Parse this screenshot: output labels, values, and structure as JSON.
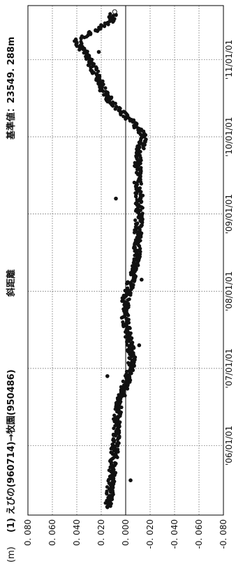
{
  "chart_data": {
    "type": "scatter",
    "orientation": "rotated-90-ccw",
    "unit_label": "(m)",
    "station_label": "(1) えびの(960714)→牧園(950486)",
    "measure_label": "斜距離",
    "reference_label": "基準値：23549. 288m",
    "baseline": 0.0,
    "ylim": [
      -0.08,
      0.08
    ],
    "y_ticks": [
      "0. 080",
      "0. 060",
      "0. 040",
      "0. 020",
      "0. 000",
      "-0. 020",
      "-0. 040",
      "-0. 060",
      "-0. 080"
    ],
    "y_tick_values": [
      0.08,
      0.06,
      0.04,
      0.02,
      0.0,
      -0.02,
      -0.04,
      -0.06,
      -0.08
    ],
    "x_ticks": [
      "'06/01/01",
      "'07/01/01",
      "'08/01/01",
      "'09/01/01",
      "'10/01/01",
      "'11/01/01"
    ],
    "x_tick_years": [
      2006,
      2007,
      2008,
      2009,
      2010,
      2011
    ],
    "xlim": [
      2005.1,
      2011.7
    ],
    "grid": true,
    "series": [
      {
        "x": [
          2005.2,
          2005.35,
          2005.5,
          2005.65,
          2005.8,
          2005.95,
          2006.1,
          2006.25,
          2006.4,
          2006.55,
          2006.7,
          2006.85,
          2007.0,
          2007.15,
          2007.3,
          2007.45,
          2007.6,
          2007.75,
          2007.9,
          2008.05,
          2008.2,
          2008.35,
          2008.5,
          2008.65,
          2008.8,
          2008.95,
          2009.1,
          2009.25,
          2009.4,
          2009.55,
          2009.7,
          2009.85,
          2010.0,
          2010.15,
          2010.3,
          2010.45,
          2010.6,
          2010.75,
          2010.9,
          2011.05,
          2011.25,
          2011.35,
          2011.5,
          2011.6
        ],
        "y": [
          0.015,
          0.013,
          0.012,
          0.011,
          0.01,
          0.009,
          0.008,
          0.008,
          0.007,
          0.005,
          0.002,
          -0.001,
          -0.004,
          -0.005,
          -0.004,
          -0.002,
          0.0,
          0.001,
          0.0,
          -0.003,
          -0.006,
          -0.008,
          -0.009,
          -0.01,
          -0.01,
          -0.011,
          -0.011,
          -0.011,
          -0.01,
          -0.01,
          -0.01,
          -0.012,
          -0.015,
          -0.008,
          0.002,
          0.012,
          0.018,
          0.022,
          0.027,
          0.032,
          0.04,
          0.028,
          0.012,
          0.01
        ],
        "outliers": {
          "x": [
            2005.55,
            2006.9,
            2007.3,
            2008.1,
            2008.15,
            2009.2,
            2010.6,
            2011.05,
            2011.1
          ],
          "y": [
            -0.004,
            0.015,
            -0.011,
            -0.001,
            -0.013,
            0.008,
            0.021,
            0.03,
            0.022
          ]
        }
      }
    ]
  }
}
